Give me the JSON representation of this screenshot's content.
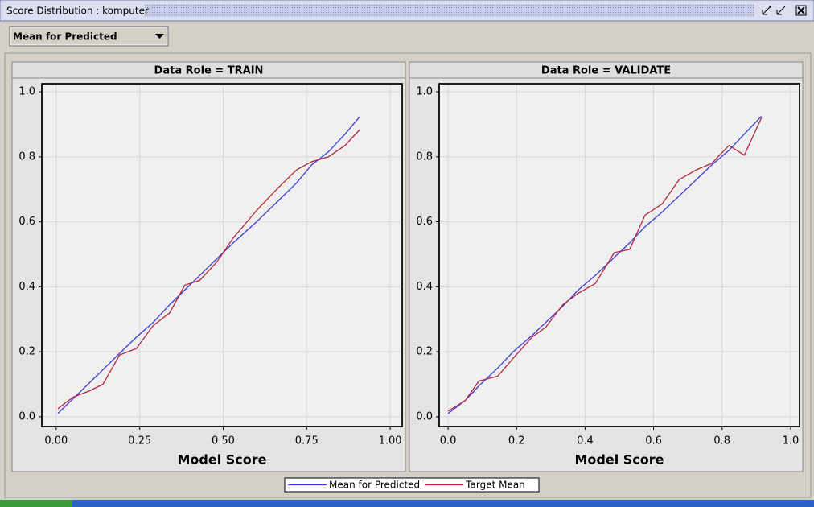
{
  "window": {
    "title": "Score Distribution : komputer"
  },
  "dropdown": {
    "selected": "Mean for Predicted"
  },
  "chart_data": [
    {
      "type": "line",
      "title": "Data Role = TRAIN",
      "x_label": "Model Score",
      "x": [
        0.005,
        0.05,
        0.1,
        0.14,
        0.19,
        0.24,
        0.29,
        0.34,
        0.385,
        0.43,
        0.48,
        0.53,
        0.6,
        0.665,
        0.72,
        0.765,
        0.815,
        0.865,
        0.91
      ],
      "series": [
        {
          "name": "Mean for Predicted",
          "color": "#3c3cdc",
          "values": [
            0.01,
            0.055,
            0.105,
            0.145,
            0.195,
            0.245,
            0.29,
            0.345,
            0.39,
            0.435,
            0.485,
            0.535,
            0.6,
            0.665,
            0.72,
            0.775,
            0.815,
            0.87,
            0.925
          ]
        },
        {
          "name": "Target Mean",
          "color": "#b4283c",
          "values": [
            0.025,
            0.06,
            0.08,
            0.1,
            0.19,
            0.21,
            0.28,
            0.32,
            0.405,
            0.42,
            0.475,
            0.55,
            0.635,
            0.705,
            0.76,
            0.785,
            0.8,
            0.835,
            0.885
          ]
        }
      ],
      "xlim": [
        -0.043,
        1.036
      ],
      "ylim": [
        -0.03,
        1.025
      ],
      "xticks": [
        {
          "value": 0,
          "label": "0.00"
        },
        {
          "value": 0.25,
          "label": "0.25"
        },
        {
          "value": 0.5,
          "label": "0.50"
        },
        {
          "value": 0.75,
          "label": "0.75"
        },
        {
          "value": 1,
          "label": "1.00"
        }
      ],
      "yticks": [
        {
          "value": 0,
          "label": "0.0"
        },
        0.2,
        0.4,
        0.6,
        0.8,
        {
          "value": 1,
          "label": "1.0"
        }
      ],
      "grid": true
    },
    {
      "type": "line",
      "title": "Data Role = VALIDATE",
      "x_label": "Model Score",
      "x": [
        0.0,
        0.05,
        0.09,
        0.145,
        0.19,
        0.245,
        0.285,
        0.335,
        0.38,
        0.43,
        0.485,
        0.53,
        0.575,
        0.625,
        0.675,
        0.725,
        0.77,
        0.82,
        0.865,
        0.915
      ],
      "series": [
        {
          "color": "#3c3cdc",
          "values": [
            0.01,
            0.05,
            0.095,
            0.15,
            0.2,
            0.25,
            0.29,
            0.34,
            0.39,
            0.435,
            0.49,
            0.535,
            0.585,
            0.63,
            0.68,
            0.73,
            0.775,
            0.82,
            0.87,
            0.925
          ]
        },
        {
          "color": "#b4283c",
          "values": [
            0.017,
            0.05,
            0.11,
            0.125,
            0.18,
            0.245,
            0.275,
            0.345,
            0.38,
            0.41,
            0.505,
            0.515,
            0.62,
            0.655,
            0.73,
            0.76,
            0.78,
            0.835,
            0.805,
            0.92
          ]
        }
      ],
      "xlim": [
        -0.026,
        1.026
      ],
      "ylim": [
        -0.03,
        1.025
      ],
      "xticks": [
        {
          "value": 0,
          "label": "0.0"
        },
        0.2,
        0.4,
        0.6,
        0.8,
        {
          "value": 1,
          "label": "1.0"
        }
      ],
      "yticks": [
        {
          "value": 0,
          "label": "0.0"
        },
        0.2,
        0.4,
        0.6,
        0.8,
        {
          "value": 1,
          "label": "1.0"
        }
      ],
      "grid": true
    }
  ]
}
